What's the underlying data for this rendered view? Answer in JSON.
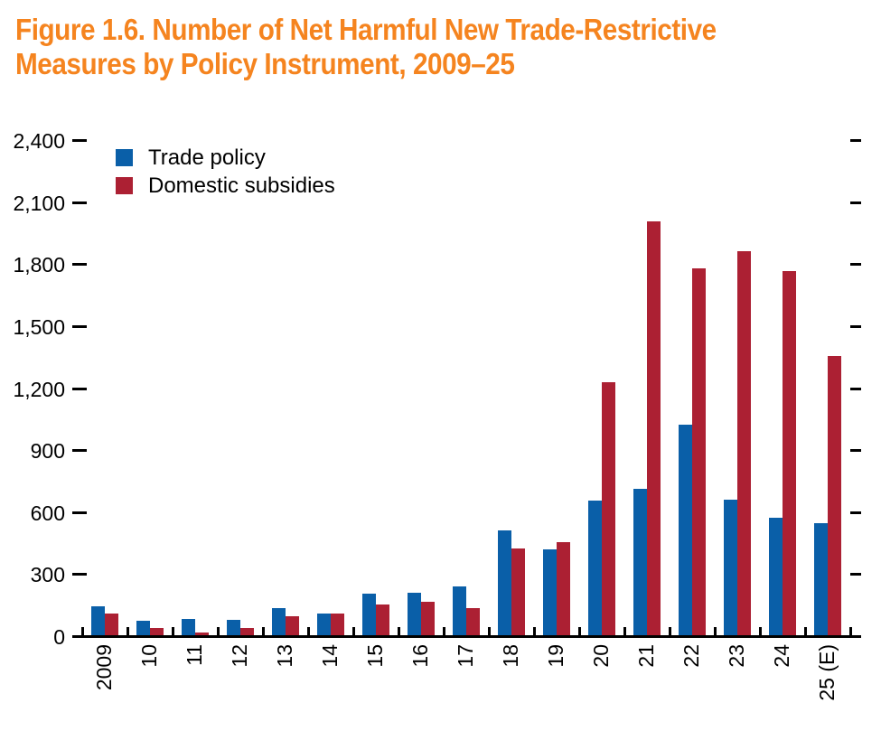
{
  "title": {
    "full": "Figure 1.6. Number of Net Harmful New Trade-Restrictive Measures by Policy Instrument, 2009–25",
    "lines": [
      "Figure 1.6. Number of Net Harmful New Trade-Restrictive",
      "Measures by Policy Instrument, 2009–25"
    ],
    "color": "#f5841f"
  },
  "chart_data": {
    "type": "bar",
    "title": "Figure 1.6. Number of Net Harmful New Trade-Restrictive Measures by Policy Instrument, 2009–25",
    "categories": [
      "2009",
      "10",
      "11",
      "12",
      "13",
      "14",
      "15",
      "16",
      "17",
      "18",
      "19",
      "20",
      "21",
      "22",
      "23",
      "24",
      "25 (E)"
    ],
    "series": [
      {
        "name": "Trade policy",
        "color": "#0a5fa8",
        "values": [
          140,
          70,
          78,
          75,
          130,
          105,
          200,
          205,
          235,
          505,
          415,
          650,
          710,
          1020,
          655,
          570,
          540
        ]
      },
      {
        "name": "Domestic subsidies",
        "color": "#ac2033",
        "values": [
          103,
          35,
          15,
          33,
          90,
          105,
          150,
          160,
          130,
          420,
          450,
          1225,
          2000,
          1775,
          1860,
          1760,
          1350
        ]
      }
    ],
    "ylim": [
      0,
      2400
    ],
    "ytick_step": 300,
    "ytick_labels": [
      "0",
      "300",
      "600",
      "900",
      "1,200",
      "1,500",
      "1,800",
      "2,100",
      "2,400"
    ],
    "xlabel": "",
    "ylabel": "",
    "grid": false,
    "legend_position": "top-left",
    "axis_color": "#000000"
  }
}
